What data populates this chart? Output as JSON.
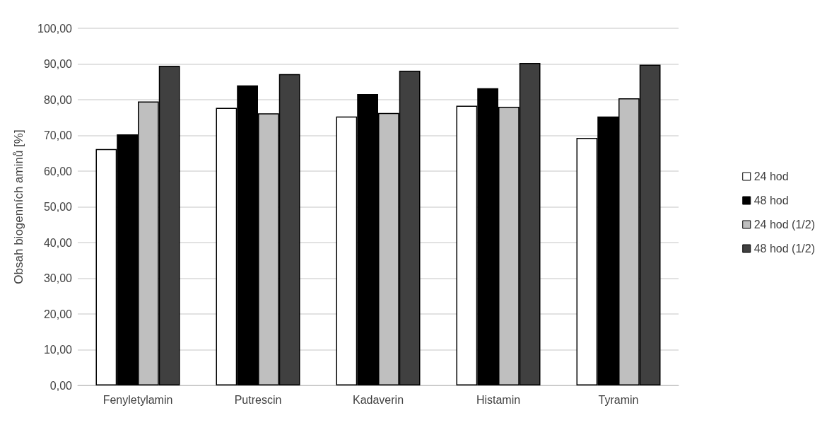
{
  "chart_data": {
    "type": "bar",
    "ylabel": "Obsah biogenních aminů [%]",
    "categories": [
      "Fenyletylamin",
      "Putrescin",
      "Kadaverin",
      "Histamin",
      "Tyramin"
    ],
    "series": [
      {
        "name": "24 hod",
        "color": "#ffffff",
        "values": [
          66.2,
          77.7,
          75.3,
          78.3,
          69.3
        ]
      },
      {
        "name": "48 hod",
        "color": "#000000",
        "values": [
          70.3,
          84.0,
          81.6,
          83.2,
          75.3
        ]
      },
      {
        "name": "24 hod (1/2)",
        "color": "#bfbfbf",
        "values": [
          79.5,
          76.2,
          76.3,
          78.0,
          80.4
        ]
      },
      {
        "name": "48 hod (1/2)",
        "color": "#404040",
        "values": [
          89.5,
          87.2,
          88.1,
          90.3,
          89.8
        ]
      }
    ],
    "ylim": [
      0,
      100
    ],
    "yticks": [
      {
        "value": 0,
        "label": "0,00"
      },
      {
        "value": 10,
        "label": "10,00"
      },
      {
        "value": 20,
        "label": "20,00"
      },
      {
        "value": 30,
        "label": "30,00"
      },
      {
        "value": 40,
        "label": "40,00"
      },
      {
        "value": 50,
        "label": "50,00"
      },
      {
        "value": 60,
        "label": "60,00"
      },
      {
        "value": 70,
        "label": "70,00"
      },
      {
        "value": 80,
        "label": "80,00"
      },
      {
        "value": 90,
        "label": "90,00"
      },
      {
        "value": 100,
        "label": "100,00"
      }
    ],
    "grid": "y",
    "legend": "right"
  }
}
